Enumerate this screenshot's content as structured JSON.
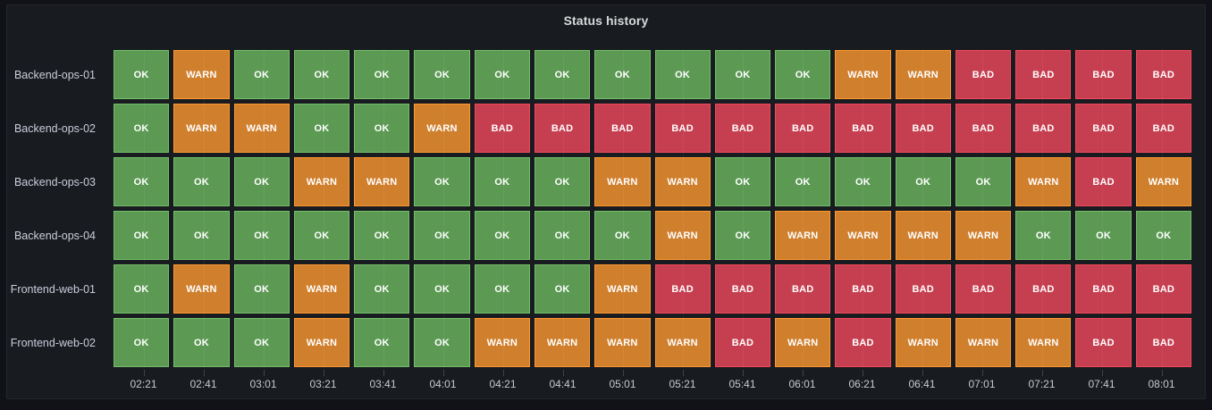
{
  "panel": {
    "title": "Status history"
  },
  "chart_data": {
    "type": "heatmap",
    "title": "Status history",
    "xlabel": "",
    "ylabel": "",
    "grid": true,
    "legend_position": "none",
    "x": [
      "02:21",
      "02:41",
      "03:01",
      "03:21",
      "03:41",
      "04:01",
      "04:21",
      "04:41",
      "05:01",
      "05:21",
      "05:41",
      "06:01",
      "06:21",
      "06:41",
      "07:01",
      "07:21",
      "07:41",
      "08:01"
    ],
    "value_domain": [
      "OK",
      "WARN",
      "BAD"
    ],
    "value_colors": {
      "OK": "#73BF69",
      "WARN": "#FF9830",
      "BAD": "#F2495C"
    },
    "value_fill_colors": {
      "OK": "#5C9A54",
      "WARN": "#D07F2D",
      "BAD": "#C63F50"
    },
    "series": [
      {
        "name": "Backend-ops-01",
        "values": [
          "OK",
          "WARN",
          "OK",
          "OK",
          "OK",
          "OK",
          "OK",
          "OK",
          "OK",
          "OK",
          "OK",
          "OK",
          "WARN",
          "WARN",
          "BAD",
          "BAD",
          "BAD",
          "BAD"
        ]
      },
      {
        "name": "Backend-ops-02",
        "values": [
          "OK",
          "WARN",
          "WARN",
          "OK",
          "OK",
          "WARN",
          "BAD",
          "BAD",
          "BAD",
          "BAD",
          "BAD",
          "BAD",
          "BAD",
          "BAD",
          "BAD",
          "BAD",
          "BAD",
          "BAD"
        ]
      },
      {
        "name": "Backend-ops-03",
        "values": [
          "OK",
          "OK",
          "OK",
          "WARN",
          "WARN",
          "OK",
          "OK",
          "OK",
          "WARN",
          "WARN",
          "OK",
          "OK",
          "OK",
          "OK",
          "OK",
          "WARN",
          "BAD",
          "WARN"
        ]
      },
      {
        "name": "Backend-ops-04",
        "values": [
          "OK",
          "OK",
          "OK",
          "OK",
          "OK",
          "OK",
          "OK",
          "OK",
          "OK",
          "WARN",
          "OK",
          "WARN",
          "WARN",
          "WARN",
          "WARN",
          "OK",
          "OK",
          "OK"
        ]
      },
      {
        "name": "Frontend-web-01",
        "values": [
          "OK",
          "WARN",
          "OK",
          "WARN",
          "OK",
          "OK",
          "OK",
          "OK",
          "WARN",
          "BAD",
          "BAD",
          "BAD",
          "BAD",
          "BAD",
          "BAD",
          "BAD",
          "BAD",
          "BAD"
        ]
      },
      {
        "name": "Frontend-web-02",
        "values": [
          "OK",
          "OK",
          "OK",
          "WARN",
          "OK",
          "OK",
          "WARN",
          "WARN",
          "WARN",
          "WARN",
          "BAD",
          "WARN",
          "BAD",
          "WARN",
          "WARN",
          "WARN",
          "BAD",
          "BAD"
        ]
      }
    ]
  },
  "colors": {
    "page_bg": "#111217",
    "panel_bg": "#181B1F",
    "panel_border": "#25272C",
    "title_text": "#D8D9DA",
    "row_label_text": "#CCCCDC",
    "axis_label_text": "#C8C9CC",
    "cell_text": "#FFFFFF"
  }
}
